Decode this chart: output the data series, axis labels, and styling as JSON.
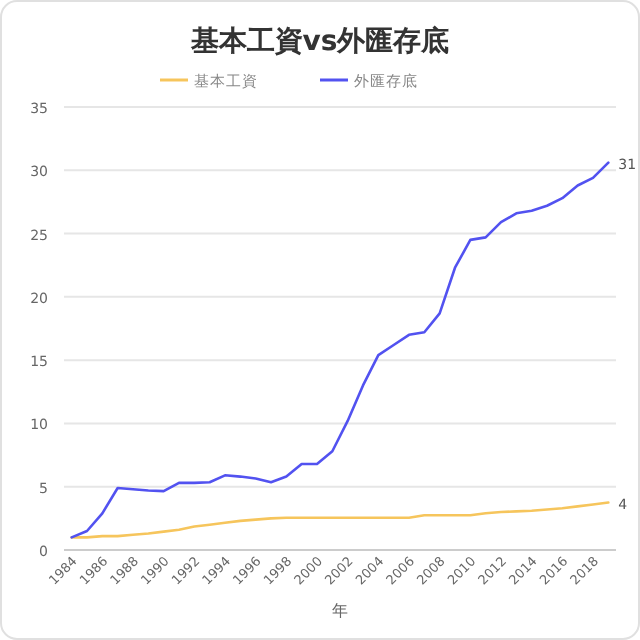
{
  "chart_data": {
    "type": "line",
    "title": "基本工資vs外匯存底",
    "xlabel": "年",
    "legend": "top",
    "grid": "y",
    "categories": [
      "1984",
      null,
      "1986",
      null,
      "1988",
      null,
      "1990",
      null,
      "1992",
      null,
      "1994",
      null,
      "1996",
      null,
      "1998",
      null,
      "2000",
      null,
      "2002",
      null,
      "2004",
      null,
      "2006",
      null,
      "2008",
      null,
      "2010",
      null,
      "2012",
      null,
      "2014",
      null,
      "2016",
      null,
      "2018",
      null
    ],
    "ylim": [
      0,
      35
    ],
    "yticks": [
      0,
      5,
      10,
      15,
      20,
      25,
      30,
      35
    ],
    "series": [
      {
        "name": "基本工資",
        "color": "#f6c55c",
        "values": [
          1.0,
          1.0,
          1.1,
          1.1,
          1.2,
          1.3,
          1.45,
          1.6,
          1.85,
          2.0,
          2.15,
          2.3,
          2.4,
          2.5,
          2.55,
          2.55,
          2.55,
          2.55,
          2.55,
          2.55,
          2.55,
          2.55,
          2.55,
          2.75,
          2.75,
          2.75,
          2.75,
          2.9,
          3.0,
          3.05,
          3.1,
          3.2,
          3.3,
          3.45,
          3.6,
          3.75
        ],
        "value_labels": [
          null,
          null,
          null,
          null,
          null,
          null,
          null,
          null,
          null,
          null,
          null,
          null,
          null,
          null,
          null,
          null,
          null,
          null,
          null,
          null,
          null,
          null,
          null,
          null,
          null,
          null,
          null,
          null,
          null,
          null,
          null,
          null,
          null,
          null,
          null,
          "4"
        ]
      },
      {
        "name": "外匯存底",
        "color": "#5252f0",
        "values": [
          1.0,
          1.5,
          2.9,
          4.9,
          4.8,
          4.7,
          4.65,
          5.3,
          5.3,
          5.35,
          5.9,
          5.8,
          5.65,
          5.35,
          5.8,
          6.8,
          6.8,
          7.8,
          10.2,
          13.0,
          15.4,
          16.2,
          17.0,
          17.2,
          18.7,
          22.3,
          24.5,
          24.7,
          25.9,
          26.6,
          26.8,
          27.2,
          27.8,
          28.8,
          29.4,
          30.6
        ],
        "value_labels": [
          null,
          null,
          null,
          null,
          null,
          null,
          null,
          null,
          null,
          null,
          null,
          null,
          null,
          null,
          null,
          null,
          null,
          null,
          null,
          null,
          null,
          null,
          null,
          null,
          null,
          null,
          null,
          null,
          null,
          null,
          null,
          null,
          null,
          null,
          null,
          "31"
        ]
      }
    ]
  }
}
